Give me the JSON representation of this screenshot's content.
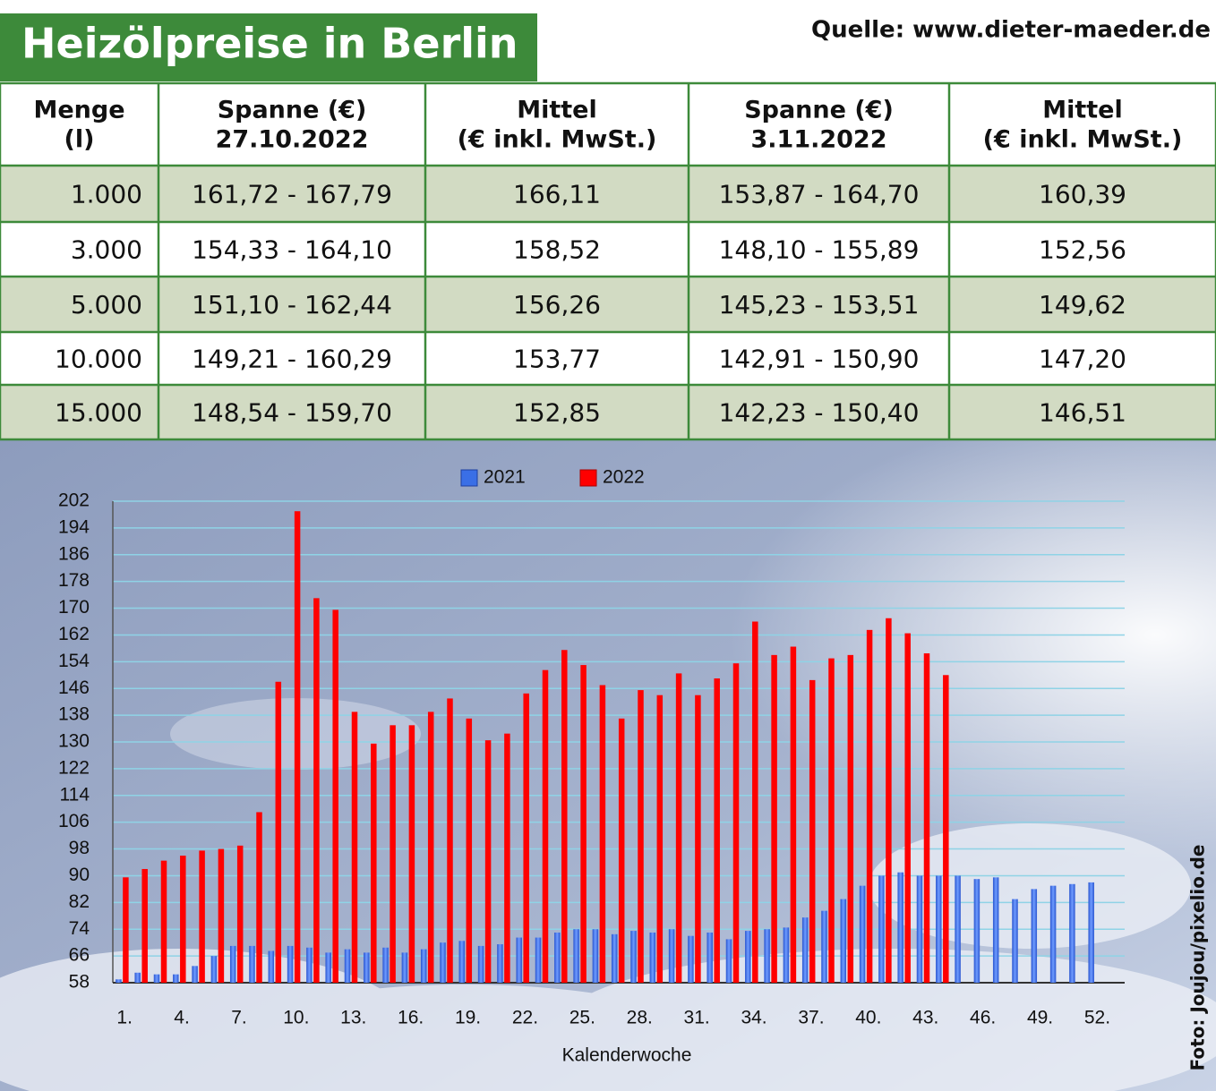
{
  "header": {
    "title": "Heizölpreise in Berlin",
    "source": "Quelle: www.dieter-maeder.de"
  },
  "table": {
    "header": [
      [
        "Menge",
        "(l)"
      ],
      [
        "Spanne (€)",
        "27.10.2022"
      ],
      [
        "Mittel",
        "(€ inkl. MwSt.)"
      ],
      [
        "Spanne (€)",
        "3.11.2022"
      ],
      [
        "Mittel",
        "(€ inkl. MwSt.)"
      ]
    ],
    "rows": [
      [
        "1.000",
        "161,72 - 167,79",
        "166,11",
        "153,87 - 164,70",
        "160,39"
      ],
      [
        "3.000",
        "154,33 - 164,10",
        "158,52",
        "148,10 - 155,89",
        "152,56"
      ],
      [
        "5.000",
        "151,10 - 162,44",
        "156,26",
        "145,23 - 153,51",
        "149,62"
      ],
      [
        "10.000",
        "149,21 - 160,29",
        "153,77",
        "142,91 - 150,90",
        "147,20"
      ],
      [
        "15.000",
        "148,54 - 159,70",
        "152,85",
        "142,23 - 150,40",
        "146,51"
      ]
    ]
  },
  "chart_data": {
    "type": "bar",
    "xlabel": "Kalenderwoche",
    "credit": "Foto: Joujou/pixelio.de",
    "categories": [
      "1.",
      null,
      null,
      "4.",
      null,
      null,
      "7.",
      null,
      null,
      "10.",
      null,
      null,
      "13.",
      null,
      null,
      "16.",
      null,
      null,
      "19.",
      null,
      null,
      "22.",
      null,
      null,
      "25.",
      null,
      null,
      "28.",
      null,
      null,
      "31.",
      null,
      null,
      "34.",
      null,
      null,
      "37.",
      null,
      null,
      "40.",
      null,
      null,
      "43.",
      null,
      null,
      "46.",
      null,
      null,
      "49.",
      null,
      null,
      "52."
    ],
    "series": [
      {
        "name": "2021",
        "color": "#3a6fe6",
        "values": [
          59,
          61,
          60.5,
          60.5,
          63,
          66,
          69,
          69,
          67.5,
          69,
          68.5,
          67,
          68,
          67,
          68.5,
          67,
          68,
          70,
          70.5,
          69,
          69.5,
          71.5,
          71.5,
          73,
          74,
          74,
          72.5,
          73.5,
          73,
          74,
          72,
          73,
          71,
          73.5,
          74,
          74.5,
          77.5,
          79.5,
          83,
          87,
          90,
          91,
          90,
          90,
          90,
          89,
          89.5,
          83,
          86,
          87,
          87.5,
          88
        ]
      },
      {
        "name": "2022",
        "color": "#ff0000",
        "values": [
          89.5,
          92,
          94.5,
          96,
          97.5,
          98,
          99,
          109,
          148,
          199,
          173,
          169.5,
          139,
          129.5,
          135,
          135,
          139,
          143,
          137,
          130.5,
          132.5,
          144.5,
          151.5,
          157.5,
          153,
          147,
          137,
          145.5,
          144,
          150.5,
          144,
          149,
          153.5,
          166,
          156,
          158.5,
          148.5,
          155,
          156,
          163.5,
          167,
          162.5,
          156.5,
          150,
          null,
          null,
          null,
          null,
          null,
          null,
          null,
          null
        ]
      }
    ],
    "ylim": [
      58,
      202
    ],
    "yticks": [
      58,
      66,
      74,
      82,
      90,
      98,
      106,
      114,
      122,
      130,
      138,
      146,
      154,
      162,
      170,
      178,
      186,
      194,
      202
    ],
    "grid": true,
    "legend": "top"
  }
}
